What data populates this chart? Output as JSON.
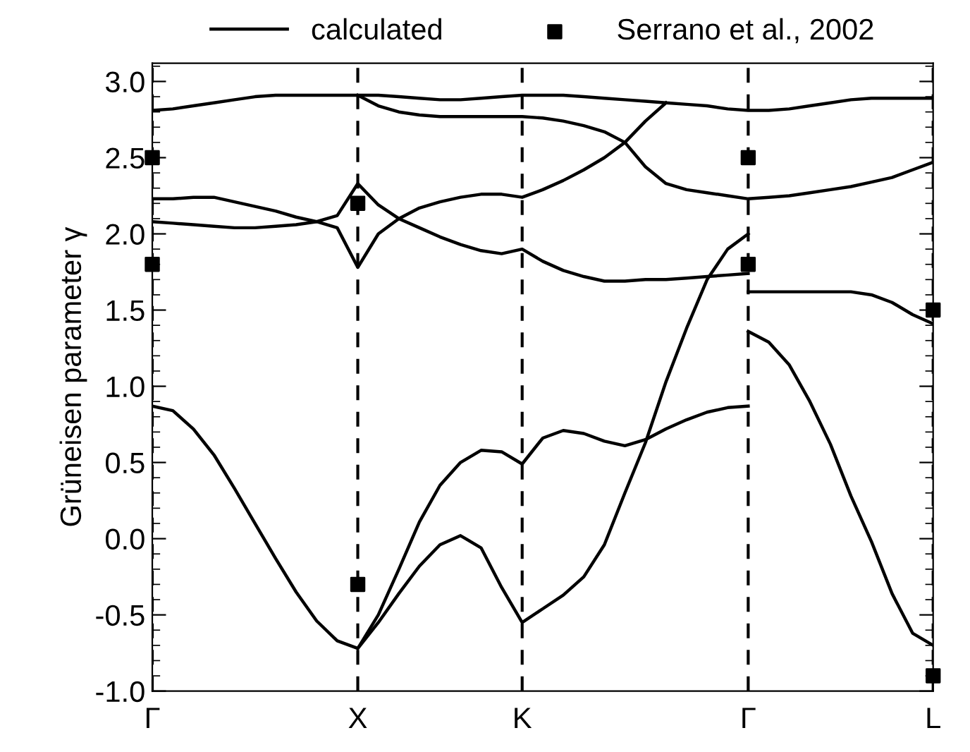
{
  "chart_data": {
    "type": "line",
    "ylabel": "Grüneisen parameter γ",
    "categories": [
      "Γ",
      null,
      null,
      null,
      null,
      null,
      null,
      null,
      null,
      null,
      "X",
      null,
      null,
      null,
      null,
      null,
      null,
      null,
      "K",
      null,
      null,
      null,
      null,
      null,
      null,
      null,
      null,
      null,
      null,
      "Γ",
      null,
      null,
      null,
      null,
      null,
      null,
      null,
      null,
      "L"
    ],
    "ylim": [
      -1.0,
      3.12
    ],
    "yticks": [
      {
        "value": -1.0,
        "label": "-1.0"
      },
      {
        "value": -0.5,
        "label": "-0.5"
      },
      {
        "value": 0.0,
        "label": "0.0"
      },
      {
        "value": 0.5,
        "label": "0.5"
      },
      {
        "value": 1.0,
        "label": "1.0"
      },
      {
        "value": 1.5,
        "label": "1.5"
      },
      {
        "value": 2.0,
        "label": "2.0"
      },
      {
        "value": 2.5,
        "label": "2.5"
      },
      {
        "value": 3.0,
        "label": "3.0"
      }
    ],
    "grid": "x",
    "legend": "top",
    "line_style": "solid",
    "series": [
      {
        "name": "calculated",
        "color": "#000000",
        "values": [
          0.87,
          0.84,
          0.72,
          0.55,
          0.33,
          0.1,
          -0.13,
          -0.35,
          -0.54,
          -0.67,
          -0.72,
          -0.5,
          -0.2,
          0.11,
          0.35,
          0.5,
          0.58,
          0.57,
          0.49,
          0.66,
          0.71,
          0.69,
          0.64,
          0.61,
          0.65,
          0.72,
          0.78,
          0.83,
          0.86,
          0.87,
          null,
          null,
          null,
          null,
          null,
          null,
          null,
          null,
          null
        ]
      },
      {
        "color": "#000000",
        "values": [
          null,
          null,
          null,
          null,
          null,
          null,
          null,
          null,
          null,
          null,
          -0.72,
          -0.55,
          -0.36,
          -0.18,
          -0.04,
          0.02,
          -0.06,
          -0.32,
          -0.55,
          -0.46,
          -0.37,
          -0.25,
          -0.04,
          0.3,
          0.63,
          1.03,
          1.38,
          1.7,
          1.9,
          2.0,
          null,
          null,
          null,
          null,
          null,
          null,
          null,
          null,
          null
        ]
      },
      {
        "color": "#000000",
        "values": [
          null,
          null,
          null,
          null,
          null,
          null,
          null,
          null,
          null,
          null,
          null,
          null,
          null,
          null,
          null,
          null,
          null,
          null,
          null,
          null,
          null,
          null,
          null,
          null,
          null,
          null,
          null,
          null,
          null,
          1.36,
          1.29,
          1.14,
          0.9,
          0.62,
          0.28,
          -0.02,
          -0.36,
          -0.62,
          -0.7
        ]
      },
      {
        "color": "#000000",
        "values": [
          2.08,
          2.07,
          2.06,
          2.05,
          2.04,
          2.04,
          2.05,
          2.06,
          2.08,
          2.12,
          2.33,
          2.19,
          2.1,
          2.04,
          1.98,
          1.93,
          1.89,
          1.87,
          1.9,
          1.82,
          1.76,
          1.72,
          1.69,
          1.69,
          1.7,
          1.7,
          1.71,
          1.72,
          1.73,
          1.74,
          null,
          null,
          null,
          null,
          null,
          null,
          null,
          null,
          null
        ]
      },
      {
        "color": "#000000",
        "values": [
          2.23,
          2.23,
          2.24,
          2.24,
          2.21,
          2.18,
          2.15,
          2.11,
          2.08,
          2.04,
          1.78,
          2.0,
          2.1,
          2.17,
          2.21,
          2.24,
          2.26,
          2.26,
          2.24,
          2.29,
          2.35,
          2.42,
          2.5,
          2.6,
          2.74,
          2.86,
          null,
          null,
          null,
          null,
          null,
          null,
          null,
          null,
          null,
          null,
          null,
          null,
          null
        ]
      },
      {
        "color": "#000000",
        "values": [
          2.81,
          2.82,
          2.84,
          2.86,
          2.88,
          2.9,
          2.91,
          2.91,
          2.91,
          2.91,
          2.91,
          2.91,
          2.9,
          2.89,
          2.88,
          2.88,
          2.89,
          2.9,
          2.91,
          2.91,
          2.91,
          2.9,
          2.89,
          2.88,
          2.87,
          2.86,
          2.85,
          2.84,
          2.82,
          2.81,
          2.81,
          2.82,
          2.84,
          2.86,
          2.88,
          2.89,
          2.89,
          2.89,
          2.89
        ]
      },
      {
        "color": "#000000",
        "values": [
          null,
          null,
          null,
          null,
          null,
          null,
          null,
          null,
          null,
          null,
          2.91,
          2.84,
          2.8,
          2.78,
          2.77,
          2.77,
          2.77,
          2.77,
          2.77,
          2.76,
          2.74,
          2.71,
          2.67,
          2.6,
          2.44,
          2.33,
          2.29,
          2.27,
          2.25,
          2.23,
          2.24,
          2.25,
          2.27,
          2.29,
          2.31,
          2.34,
          2.37,
          2.42,
          2.47
        ]
      },
      {
        "color": "#000000",
        "values": [
          null,
          null,
          null,
          null,
          null,
          null,
          null,
          null,
          null,
          null,
          null,
          null,
          null,
          null,
          null,
          null,
          null,
          null,
          null,
          null,
          null,
          null,
          null,
          null,
          null,
          null,
          null,
          null,
          null,
          1.62,
          1.62,
          1.62,
          1.62,
          1.62,
          1.62,
          1.6,
          1.55,
          1.47,
          1.41
        ]
      },
      {
        "name": "Serrano et al., 2002",
        "type": "scatter",
        "marker": "square",
        "color": "#000000",
        "values": [
          2.5,
          null,
          null,
          null,
          null,
          null,
          null,
          null,
          null,
          null,
          2.2,
          null,
          null,
          null,
          null,
          null,
          null,
          null,
          null,
          null,
          null,
          null,
          null,
          null,
          null,
          null,
          null,
          null,
          null,
          2.5,
          null,
          null,
          null,
          null,
          null,
          null,
          null,
          null,
          1.5
        ]
      },
      {
        "type": "scatter",
        "marker": "square",
        "color": "#000000",
        "values": [
          1.8,
          null,
          null,
          null,
          null,
          null,
          null,
          null,
          null,
          null,
          -0.3,
          null,
          null,
          null,
          null,
          null,
          null,
          null,
          null,
          null,
          null,
          null,
          null,
          null,
          null,
          null,
          null,
          null,
          null,
          1.8,
          null,
          null,
          null,
          null,
          null,
          null,
          null,
          null,
          -0.9
        ]
      }
    ]
  }
}
